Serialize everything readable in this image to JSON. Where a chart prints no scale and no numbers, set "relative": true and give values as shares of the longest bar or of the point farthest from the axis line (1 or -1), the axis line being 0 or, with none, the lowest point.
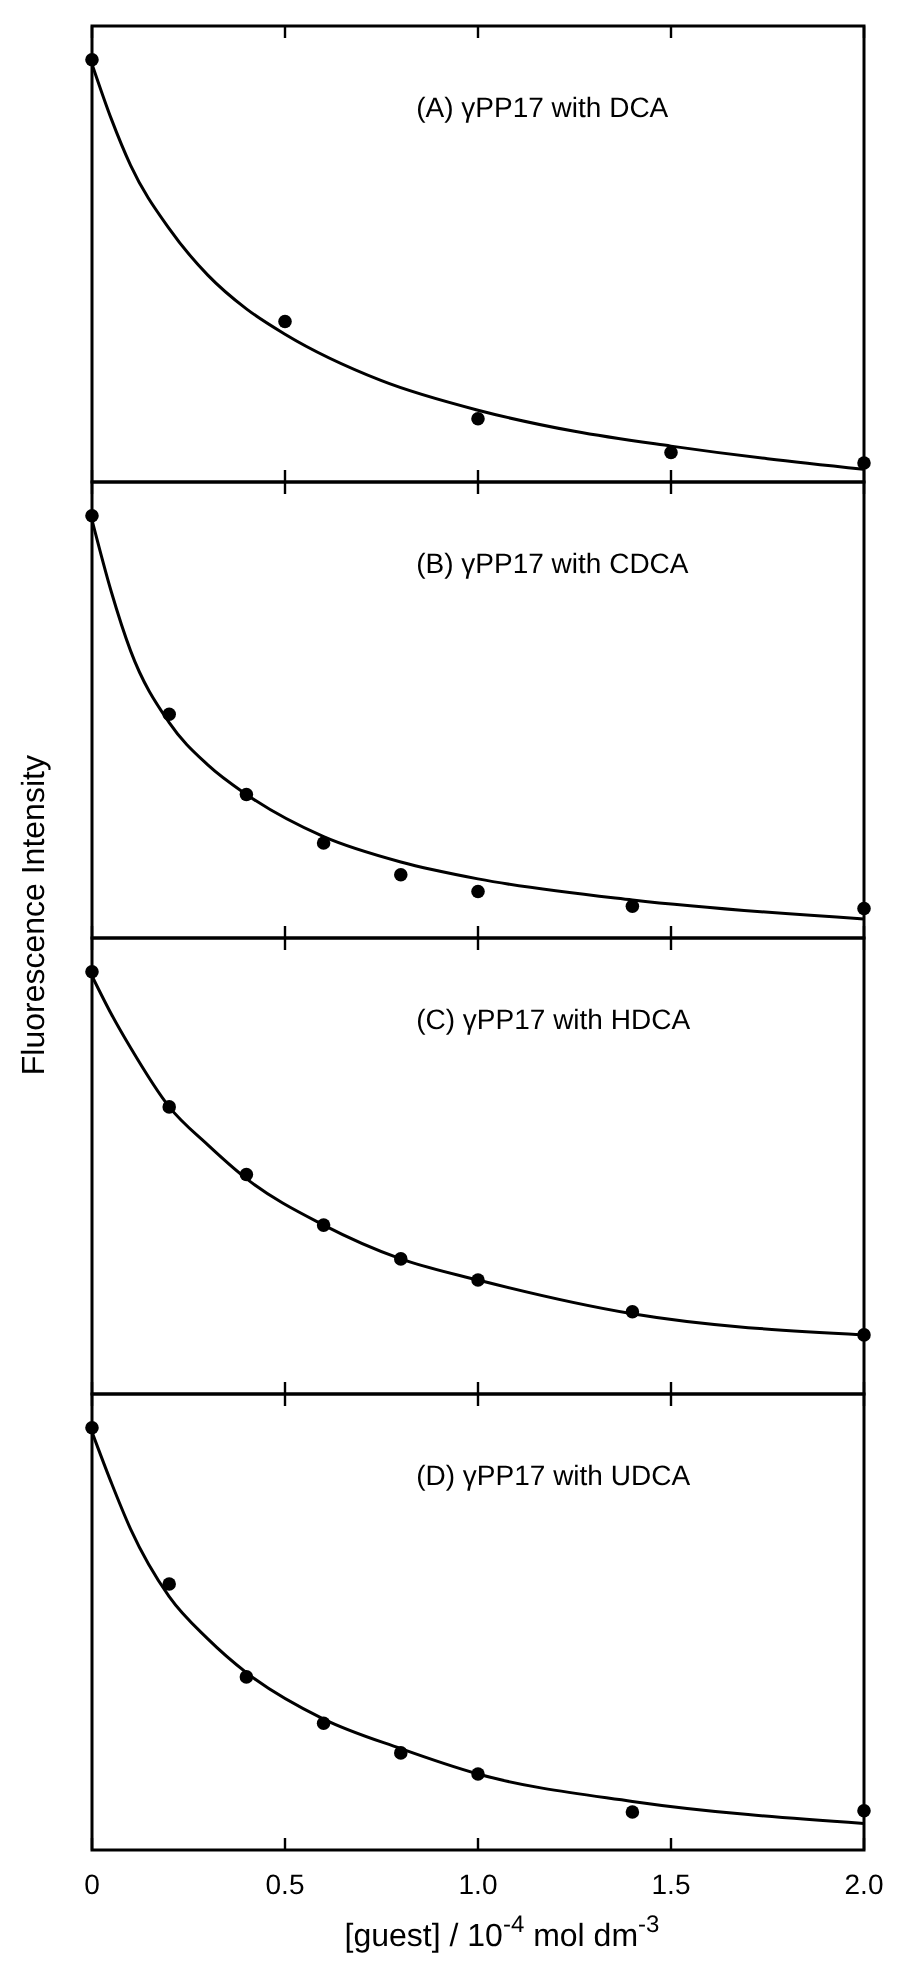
{
  "chart_data": [
    {
      "type": "scatter",
      "title": "(A)  γPP17 with DCA",
      "relative": true,
      "xlim": [
        0,
        2.0
      ],
      "xticks": [
        {
          "value": 0,
          "label": null
        },
        {
          "value": 0.5,
          "label": null
        },
        {
          "value": 1.0,
          "label": null
        },
        {
          "value": 1.5,
          "label": null
        },
        {
          "value": 2.0,
          "label": null
        }
      ],
      "tick_labels": false,
      "series": [
        {
          "type": "scatter",
          "color": "#000000",
          "marker": "circle",
          "x": [
            0,
            0.5,
            1.0,
            1.5,
            2.0
          ],
          "values": [
            1,
            0.38,
            0.15,
            0.07,
            0.045
          ]
        },
        {
          "type": "line",
          "color": "#000000",
          "marker": "none",
          "line_style": "solid",
          "x": [
            0,
            0.05,
            0.1,
            0.2,
            0.3,
            0.4,
            0.5,
            0.75,
            1.0,
            1.25,
            1.5,
            1.75,
            2.0
          ],
          "values": [
            0.99,
            0.86,
            0.75,
            0.6,
            0.49,
            0.41,
            0.35,
            0.24,
            0.17,
            0.12,
            0.085,
            0.055,
            0.03
          ]
        }
      ]
    },
    {
      "type": "scatter",
      "title": "(B)  γPP17 with CDCA",
      "ylabel": "Fluorescence Intensity",
      "relative": true,
      "xlim": [
        0,
        2.0
      ],
      "xticks": [
        {
          "value": 0,
          "label": null
        },
        {
          "value": 0.5,
          "label": null
        },
        {
          "value": 1.0,
          "label": null
        },
        {
          "value": 1.5,
          "label": null
        },
        {
          "value": 2.0,
          "label": null
        }
      ],
      "tick_labels": false,
      "series": [
        {
          "type": "scatter",
          "color": "#000000",
          "marker": "circle",
          "x": [
            0,
            0.2,
            0.4,
            0.6,
            0.8,
            1.0,
            1.4,
            2.0
          ],
          "values": [
            1,
            0.53,
            0.34,
            0.225,
            0.15,
            0.11,
            0.075,
            0.07
          ]
        },
        {
          "type": "line",
          "color": "#000000",
          "marker": "none",
          "line_style": "solid",
          "x": [
            0,
            0.05,
            0.1,
            0.2,
            0.3,
            0.4,
            0.6,
            0.8,
            1.0,
            1.4,
            2.0
          ],
          "values": [
            0.99,
            0.82,
            0.68,
            0.51,
            0.41,
            0.34,
            0.24,
            0.18,
            0.14,
            0.09,
            0.045
          ]
        }
      ]
    },
    {
      "type": "scatter",
      "title": "(C)  γPP17 with HDCA",
      "relative": true,
      "xlim": [
        0,
        2.0
      ],
      "xticks": [
        {
          "value": 0,
          "label": null
        },
        {
          "value": 0.5,
          "label": null
        },
        {
          "value": 1.0,
          "label": null
        },
        {
          "value": 1.5,
          "label": null
        },
        {
          "value": 2.0,
          "label": null
        }
      ],
      "tick_labels": false,
      "series": [
        {
          "type": "scatter",
          "color": "#000000",
          "marker": "circle",
          "x": [
            0,
            0.2,
            0.4,
            0.6,
            0.8,
            1.0,
            1.4,
            2.0
          ],
          "values": [
            1,
            0.68,
            0.52,
            0.4,
            0.32,
            0.27,
            0.195,
            0.14
          ]
        },
        {
          "type": "line",
          "color": "#000000",
          "marker": "none",
          "line_style": "solid",
          "x": [
            0,
            0.05,
            0.1,
            0.2,
            0.3,
            0.4,
            0.6,
            0.8,
            1.0,
            1.4,
            2.0
          ],
          "values": [
            0.99,
            0.9,
            0.82,
            0.68,
            0.59,
            0.51,
            0.4,
            0.32,
            0.27,
            0.19,
            0.14
          ]
        }
      ]
    },
    {
      "type": "scatter",
      "title": "(D) γPP17 with UDCA",
      "xlabel": "[guest] / 10$^{-4}$ mol dm$^{-3}$",
      "relative": true,
      "xlim": [
        0,
        2.0
      ],
      "xticks": [
        0,
        0.5,
        {
          "value": 1.0,
          "label": "1.0"
        },
        1.5,
        {
          "value": 2.0,
          "label": "2.0"
        }
      ],
      "tick_labels": "x",
      "series": [
        {
          "type": "scatter",
          "color": "#000000",
          "marker": "circle",
          "x": [
            0,
            0.2,
            0.4,
            0.6,
            0.8,
            1.0,
            1.4,
            2.0
          ],
          "values": [
            1,
            0.63,
            0.41,
            0.3,
            0.23,
            0.18,
            0.09,
            0.093
          ]
        },
        {
          "type": "line",
          "color": "#000000",
          "marker": "none",
          "line_style": "solid",
          "x": [
            0,
            0.05,
            0.1,
            0.2,
            0.3,
            0.4,
            0.6,
            0.8,
            1.0,
            1.4,
            2.0
          ],
          "values": [
            0.99,
            0.87,
            0.76,
            0.6,
            0.5,
            0.42,
            0.31,
            0.24,
            0.18,
            0.115,
            0.063
          ]
        }
      ]
    }
  ]
}
